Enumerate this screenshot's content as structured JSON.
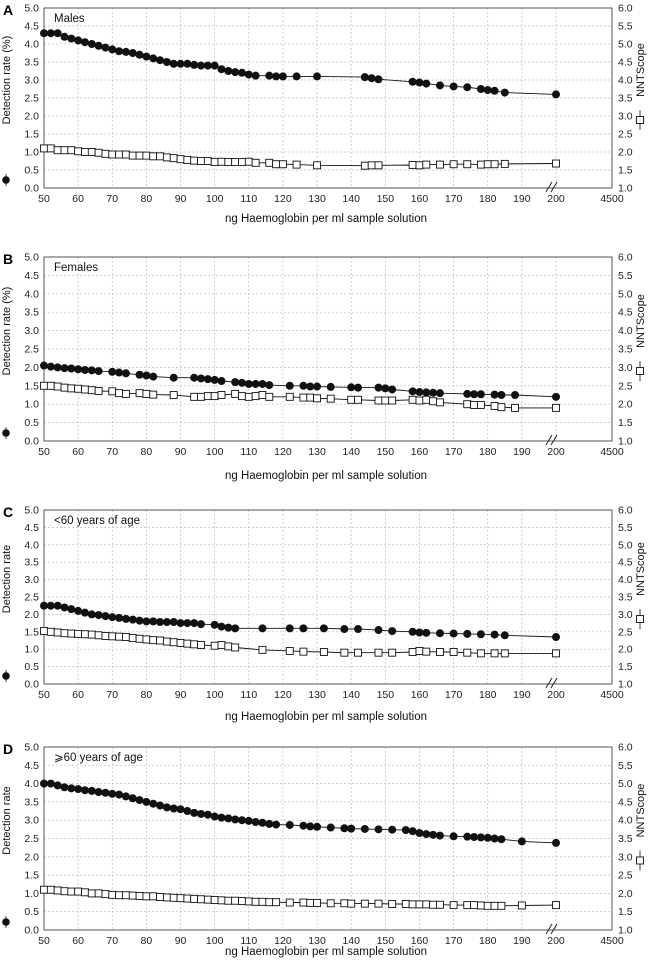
{
  "figure": {
    "xlabel": "ng Haemoglobin per ml sample solution",
    "left_tick_labels": [
      "0.0",
      "0.5",
      "1.0",
      "1.5",
      "2.0",
      "2.5",
      "3.0",
      "3.5",
      "4.0",
      "4.5",
      "5.0"
    ],
    "right_tick_labels": [
      "1.0",
      "1.5",
      "2.0",
      "2.5",
      "3.0",
      "3.5",
      "4.0",
      "4.5",
      "5.0",
      "5.5",
      "6.0"
    ],
    "x_tick_labels": [
      "50",
      "60",
      "70",
      "80",
      "90",
      "100",
      "110",
      "120",
      "130",
      "140",
      "150",
      "160",
      "170",
      "180",
      "190",
      "200",
      "4500"
    ],
    "right_ylabel": "NNTScope"
  },
  "chart_data": [
    {
      "type": "line",
      "panel_label": "A",
      "annotation": "Males",
      "ylabel": "Detection rate (%)",
      "ylabel_right": "NNTScope",
      "xlabel": "ng Haemoglobin per ml sample solution",
      "x_ticks": [
        "50",
        "60",
        "70",
        "80",
        "90",
        "100",
        "110",
        "120",
        "130",
        "140",
        "150",
        "160",
        "170",
        "180",
        "190",
        "200",
        "4500"
      ],
      "ylim": [
        0,
        5
      ],
      "ylim_right": [
        1,
        6
      ],
      "series": [
        {
          "name": "Detection rate",
          "marker": "filled-circle",
          "axis": "left",
          "x": [
            50,
            52,
            54,
            56,
            58,
            60,
            62,
            64,
            66,
            68,
            70,
            72,
            74,
            76,
            78,
            80,
            82,
            84,
            86,
            88,
            90,
            92,
            94,
            96,
            98,
            100,
            102,
            104,
            106,
            108,
            110,
            112,
            116,
            118,
            120,
            124,
            130,
            144,
            146,
            148,
            158,
            160,
            162,
            166,
            170,
            174,
            178,
            180,
            182,
            185,
            200
          ],
          "y": [
            4.3,
            4.3,
            4.3,
            4.2,
            4.15,
            4.1,
            4.05,
            4.0,
            3.95,
            3.9,
            3.85,
            3.8,
            3.78,
            3.75,
            3.7,
            3.65,
            3.6,
            3.55,
            3.5,
            3.45,
            3.45,
            3.45,
            3.42,
            3.4,
            3.4,
            3.4,
            3.3,
            3.25,
            3.22,
            3.2,
            3.15,
            3.12,
            3.12,
            3.1,
            3.1,
            3.1,
            3.1,
            3.08,
            3.05,
            3.02,
            2.95,
            2.93,
            2.9,
            2.85,
            2.82,
            2.8,
            2.75,
            2.72,
            2.7,
            2.65,
            2.6
          ]
        },
        {
          "name": "NNTScope",
          "marker": "open-square",
          "axis": "right",
          "x": [
            50,
            52,
            54,
            56,
            58,
            60,
            62,
            64,
            66,
            68,
            70,
            72,
            74,
            76,
            78,
            80,
            82,
            84,
            86,
            88,
            90,
            92,
            94,
            96,
            98,
            100,
            102,
            104,
            106,
            108,
            110,
            112,
            116,
            118,
            120,
            124,
            130,
            144,
            146,
            148,
            158,
            160,
            162,
            166,
            170,
            174,
            178,
            180,
            182,
            185,
            200
          ],
          "y": [
            2.1,
            2.1,
            2.05,
            2.05,
            2.05,
            2.02,
            2.0,
            2.0,
            1.98,
            1.95,
            1.93,
            1.93,
            1.93,
            1.9,
            1.9,
            1.9,
            1.88,
            1.88,
            1.85,
            1.83,
            1.8,
            1.78,
            1.76,
            1.75,
            1.75,
            1.72,
            1.73,
            1.72,
            1.72,
            1.72,
            1.73,
            1.7,
            1.7,
            1.66,
            1.66,
            1.65,
            1.63,
            1.62,
            1.63,
            1.63,
            1.64,
            1.63,
            1.65,
            1.65,
            1.66,
            1.66,
            1.65,
            1.66,
            1.66,
            1.67,
            1.68
          ]
        }
      ]
    },
    {
      "type": "line",
      "panel_label": "B",
      "annotation": "Females",
      "ylabel": "Detection rate (%)",
      "ylabel_right": "NNTScope",
      "xlabel": "ng Haemoglobin per ml sample solution",
      "x_ticks": [
        "50",
        "60",
        "70",
        "80",
        "90",
        "100",
        "110",
        "120",
        "130",
        "140",
        "150",
        "160",
        "170",
        "180",
        "190",
        "200",
        "4500"
      ],
      "ylim": [
        0,
        5
      ],
      "ylim_right": [
        1,
        6
      ],
      "series": [
        {
          "name": "Detection rate",
          "marker": "filled-circle",
          "axis": "left",
          "x": [
            50,
            52,
            54,
            56,
            58,
            60,
            62,
            64,
            66,
            70,
            72,
            74,
            78,
            80,
            82,
            88,
            94,
            96,
            98,
            100,
            102,
            106,
            108,
            110,
            112,
            114,
            116,
            122,
            126,
            128,
            130,
            134,
            140,
            142,
            148,
            150,
            152,
            158,
            160,
            162,
            164,
            166,
            174,
            176,
            178,
            182,
            184,
            188,
            200
          ],
          "y": [
            2.05,
            2.02,
            2.0,
            1.98,
            1.97,
            1.95,
            1.93,
            1.92,
            1.9,
            1.88,
            1.86,
            1.84,
            1.8,
            1.78,
            1.75,
            1.72,
            1.72,
            1.7,
            1.68,
            1.66,
            1.63,
            1.6,
            1.58,
            1.55,
            1.55,
            1.55,
            1.52,
            1.5,
            1.5,
            1.48,
            1.48,
            1.47,
            1.46,
            1.45,
            1.45,
            1.43,
            1.4,
            1.35,
            1.33,
            1.32,
            1.31,
            1.3,
            1.28,
            1.27,
            1.27,
            1.26,
            1.25,
            1.25,
            1.2
          ]
        },
        {
          "name": "NNTScope",
          "marker": "open-square",
          "axis": "right",
          "x": [
            50,
            52,
            54,
            56,
            58,
            60,
            62,
            64,
            66,
            70,
            72,
            74,
            78,
            80,
            82,
            88,
            94,
            96,
            98,
            100,
            102,
            106,
            108,
            110,
            112,
            114,
            116,
            122,
            126,
            128,
            130,
            134,
            140,
            142,
            148,
            150,
            152,
            158,
            160,
            162,
            164,
            166,
            174,
            176,
            178,
            182,
            184,
            188,
            200
          ],
          "y": [
            2.5,
            2.5,
            2.48,
            2.45,
            2.43,
            2.42,
            2.4,
            2.38,
            2.36,
            2.35,
            2.3,
            2.28,
            2.3,
            2.28,
            2.26,
            2.25,
            2.2,
            2.2,
            2.22,
            2.22,
            2.25,
            2.28,
            2.22,
            2.2,
            2.22,
            2.25,
            2.2,
            2.2,
            2.18,
            2.18,
            2.16,
            2.15,
            2.12,
            2.12,
            2.1,
            2.1,
            2.1,
            2.12,
            2.1,
            2.12,
            2.08,
            2.05,
            2.0,
            1.98,
            1.98,
            1.95,
            1.92,
            1.9,
            1.9
          ]
        }
      ]
    },
    {
      "type": "line",
      "panel_label": "C",
      "annotation": "<60 years of age",
      "ylabel": "Detection rate",
      "ylabel_right": "NNTScope",
      "xlabel": "ng Haemoglobin per ml sample solution",
      "x_ticks": [
        "50",
        "60",
        "70",
        "80",
        "90",
        "100",
        "110",
        "120",
        "130",
        "140",
        "150",
        "160",
        "170",
        "180",
        "190",
        "200",
        "4500"
      ],
      "ylim": [
        0,
        5
      ],
      "ylim_right": [
        1,
        6
      ],
      "series": [
        {
          "name": "Detection rate",
          "marker": "filled-circle",
          "axis": "left",
          "x": [
            50,
            52,
            54,
            56,
            58,
            60,
            62,
            64,
            66,
            68,
            70,
            72,
            74,
            76,
            78,
            80,
            82,
            84,
            86,
            88,
            90,
            92,
            94,
            96,
            100,
            102,
            104,
            106,
            114,
            122,
            126,
            132,
            138,
            142,
            148,
            152,
            158,
            160,
            162,
            166,
            170,
            174,
            178,
            182,
            185,
            200
          ],
          "y": [
            2.25,
            2.25,
            2.25,
            2.2,
            2.15,
            2.1,
            2.05,
            2.0,
            1.98,
            1.95,
            1.92,
            1.9,
            1.87,
            1.85,
            1.82,
            1.8,
            1.8,
            1.78,
            1.78,
            1.78,
            1.75,
            1.75,
            1.75,
            1.72,
            1.7,
            1.65,
            1.62,
            1.6,
            1.6,
            1.6,
            1.6,
            1.6,
            1.58,
            1.58,
            1.55,
            1.52,
            1.5,
            1.48,
            1.47,
            1.46,
            1.45,
            1.44,
            1.43,
            1.42,
            1.4,
            1.35
          ]
        },
        {
          "name": "NNTScope",
          "marker": "open-square",
          "axis": "right",
          "x": [
            50,
            52,
            54,
            56,
            58,
            60,
            62,
            64,
            66,
            68,
            70,
            72,
            74,
            76,
            78,
            80,
            82,
            84,
            86,
            88,
            90,
            92,
            94,
            96,
            100,
            102,
            104,
            106,
            114,
            122,
            126,
            132,
            138,
            142,
            148,
            152,
            158,
            160,
            162,
            166,
            170,
            174,
            178,
            182,
            185,
            200
          ],
          "y": [
            2.52,
            2.5,
            2.48,
            2.46,
            2.45,
            2.44,
            2.43,
            2.42,
            2.4,
            2.38,
            2.37,
            2.36,
            2.35,
            2.32,
            2.3,
            2.28,
            2.26,
            2.25,
            2.22,
            2.2,
            2.18,
            2.16,
            2.14,
            2.12,
            2.1,
            2.12,
            2.08,
            2.05,
            1.98,
            1.95,
            1.93,
            1.92,
            1.9,
            1.9,
            1.9,
            1.9,
            1.92,
            1.95,
            1.93,
            1.92,
            1.92,
            1.9,
            1.88,
            1.88,
            1.88,
            1.88
          ]
        }
      ]
    },
    {
      "type": "line",
      "panel_label": "D",
      "annotation": "⩾60 years of age",
      "ylabel": "Detection rate",
      "ylabel_right": "NNTScope",
      "xlabel": "ng Haemoglobin per ml sample solution",
      "x_ticks": [
        "50",
        "60",
        "70",
        "80",
        "90",
        "100",
        "110",
        "120",
        "130",
        "140",
        "150",
        "160",
        "170",
        "180",
        "190",
        "200",
        "4500"
      ],
      "ylim": [
        0,
        5
      ],
      "ylim_right": [
        1,
        6
      ],
      "series": [
        {
          "name": "Detection rate",
          "marker": "filled-circle",
          "axis": "left",
          "x": [
            50,
            52,
            54,
            56,
            58,
            60,
            62,
            64,
            66,
            68,
            70,
            72,
            74,
            76,
            78,
            80,
            82,
            84,
            86,
            88,
            90,
            92,
            94,
            96,
            98,
            100,
            102,
            104,
            106,
            108,
            110,
            112,
            114,
            116,
            118,
            122,
            126,
            128,
            130,
            134,
            138,
            140,
            144,
            148,
            152,
            156,
            158,
            160,
            162,
            164,
            166,
            170,
            174,
            176,
            178,
            180,
            182,
            184,
            190,
            200
          ],
          "y": [
            4.0,
            4.0,
            3.95,
            3.9,
            3.87,
            3.85,
            3.82,
            3.8,
            3.77,
            3.75,
            3.72,
            3.7,
            3.65,
            3.6,
            3.55,
            3.5,
            3.45,
            3.4,
            3.35,
            3.32,
            3.3,
            3.25,
            3.2,
            3.17,
            3.15,
            3.1,
            3.07,
            3.05,
            3.02,
            3.0,
            2.98,
            2.95,
            2.93,
            2.9,
            2.88,
            2.87,
            2.85,
            2.83,
            2.82,
            2.8,
            2.78,
            2.77,
            2.76,
            2.75,
            2.74,
            2.73,
            2.7,
            2.65,
            2.62,
            2.6,
            2.58,
            2.56,
            2.55,
            2.54,
            2.53,
            2.52,
            2.5,
            2.48,
            2.42,
            2.38
          ]
        },
        {
          "name": "NNTScope",
          "marker": "open-square",
          "axis": "right",
          "x": [
            50,
            52,
            54,
            56,
            58,
            60,
            62,
            64,
            66,
            68,
            70,
            72,
            74,
            76,
            78,
            80,
            82,
            84,
            86,
            88,
            90,
            92,
            94,
            96,
            98,
            100,
            102,
            104,
            106,
            108,
            110,
            112,
            114,
            116,
            118,
            122,
            126,
            128,
            130,
            134,
            138,
            140,
            144,
            148,
            152,
            156,
            158,
            160,
            162,
            164,
            166,
            170,
            174,
            176,
            178,
            180,
            182,
            184,
            190,
            200
          ],
          "y": [
            2.1,
            2.1,
            2.08,
            2.06,
            2.05,
            2.05,
            2.03,
            2.0,
            2.0,
            1.98,
            1.96,
            1.95,
            1.95,
            1.94,
            1.93,
            1.92,
            1.92,
            1.9,
            1.89,
            1.88,
            1.87,
            1.86,
            1.85,
            1.84,
            1.83,
            1.82,
            1.81,
            1.8,
            1.8,
            1.79,
            1.78,
            1.77,
            1.77,
            1.76,
            1.76,
            1.75,
            1.75,
            1.74,
            1.74,
            1.73,
            1.73,
            1.72,
            1.72,
            1.72,
            1.71,
            1.71,
            1.7,
            1.7,
            1.7,
            1.69,
            1.69,
            1.68,
            1.68,
            1.68,
            1.67,
            1.66,
            1.66,
            1.66,
            1.67,
            1.68
          ]
        }
      ]
    }
  ]
}
